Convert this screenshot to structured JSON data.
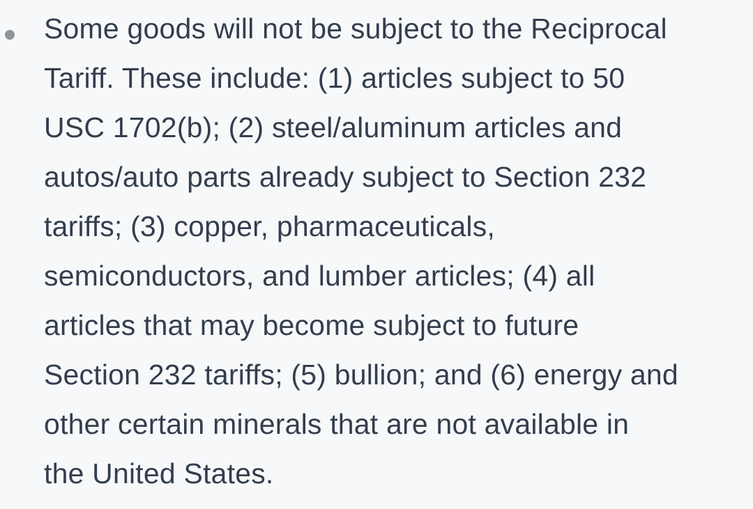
{
  "page": {
    "background_color": "#f7f8f9",
    "text_color": "#333e4e",
    "bullet_color": "#8f959c"
  },
  "list": {
    "items": [
      {
        "marker": "bullet-dot",
        "full_text": "Some goods will not be subject to the Reciprocal Tariff. These include: (1) articles subject to 50 USC 1702(b); (2) steel/aluminum articles and autos/auto parts already subject to Section 232 tariffs; (3) copper, pharmaceuticals, semiconductors, and lumber articles; (4) all articles that may become subject to future Section 232 tariffs; (5) bullion; and (6) energy and other certain minerals that are not available in the United States.",
        "lines": [
          "Some goods will not be subject to the Reciprocal",
          "Tariff. These include: (1) articles subject to 50",
          "USC 1702(b); (2) steel/aluminum articles and",
          "autos/auto parts already subject to Section 232",
          "tariffs; (3) copper, pharmaceuticals,",
          "semiconductors, and lumber articles; (4) all",
          "articles that may become subject to future",
          "Section 232 tariffs; (5) bullion; and (6) energy and",
          "other certain minerals that are not available in",
          "the United States."
        ]
      }
    ]
  }
}
